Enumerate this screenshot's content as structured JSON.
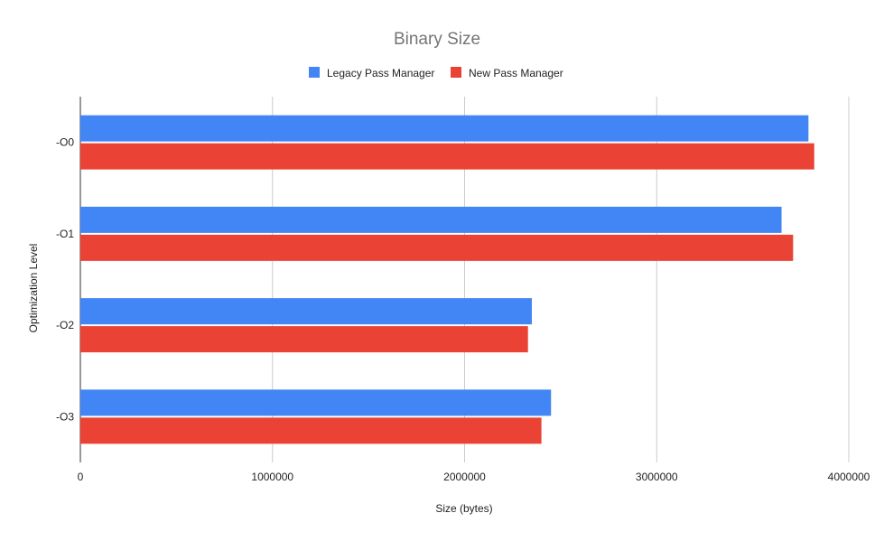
{
  "chart_data": {
    "type": "bar",
    "orientation": "horizontal",
    "title": "Binary Size",
    "xlabel": "Size (bytes)",
    "ylabel": "Optimization Level",
    "categories": [
      "-O0",
      "-O1",
      "-O2",
      "-O3"
    ],
    "series": [
      {
        "name": "Legacy Pass Manager",
        "color": "#4285f4",
        "values": [
          3790000,
          3650000,
          2350000,
          2450000
        ]
      },
      {
        "name": "New Pass Manager",
        "color": "#ea4335",
        "values": [
          3820000,
          3710000,
          2330000,
          2400000
        ]
      }
    ],
    "xlim": [
      0,
      4000000
    ],
    "xticks": [
      0,
      1000000,
      2000000,
      3000000,
      4000000
    ],
    "xtick_labels": [
      "0",
      "1000000",
      "2000000",
      "3000000",
      "4000000"
    ],
    "grid": "vertical",
    "legend_position": "top"
  }
}
